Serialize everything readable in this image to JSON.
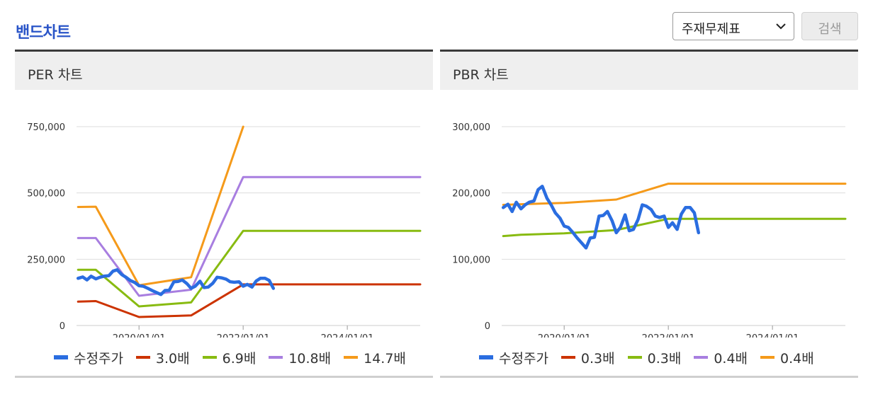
{
  "header": {
    "title": "밴드차트"
  },
  "toolbar": {
    "select_value": "주재무제표",
    "search_label": "검색"
  },
  "chart_data": [
    {
      "type": "line",
      "panel_title": "PER 차트",
      "x_ticks": [
        "2020/01/01",
        "2022/01/01",
        "2024/01/01"
      ],
      "y_ticks": [
        "0",
        "250,000",
        "500,000",
        "750,000"
      ],
      "ylim": [
        0,
        750000
      ],
      "xlim": [
        2018.8,
        2025.4
      ],
      "grid": true,
      "legend_position": "bottom",
      "series": [
        {
          "name": "수정주가",
          "color": "#2a6de0",
          "bold": true,
          "x": [
            2018.83,
            2018.92,
            2019.0,
            2019.08,
            2019.17,
            2019.25,
            2019.33,
            2019.42,
            2019.5,
            2019.58,
            2019.67,
            2019.75,
            2019.83,
            2019.92,
            2020.0,
            2020.08,
            2020.17,
            2020.25,
            2020.33,
            2020.42,
            2020.5,
            2020.58,
            2020.67,
            2020.75,
            2020.83,
            2020.92,
            2021.0,
            2021.08,
            2021.17,
            2021.25,
            2021.33,
            2021.42,
            2021.5,
            2021.58,
            2021.67,
            2021.75,
            2021.83,
            2021.92,
            2022.0,
            2022.08,
            2022.17,
            2022.25,
            2022.33,
            2022.42,
            2022.5,
            2022.58
          ],
          "y": [
            178000,
            183000,
            172000,
            186000,
            176000,
            182000,
            186000,
            188000,
            205000,
            210000,
            192000,
            182000,
            170000,
            162000,
            150000,
            148000,
            140000,
            132000,
            125000,
            117000,
            132000,
            133000,
            165000,
            166000,
            172000,
            158000,
            140000,
            148000,
            167000,
            143000,
            145000,
            160000,
            182000,
            180000,
            175000,
            165000,
            163000,
            165000,
            148000,
            155000,
            145000,
            168000,
            178000,
            178000,
            170000,
            140000
          ]
        },
        {
          "name": "3.0배",
          "color": "#cc3300",
          "x": [
            2018.83,
            2019.17,
            2020.0,
            2021.0,
            2022.0,
            2025.4
          ],
          "y": [
            90000,
            92000,
            32000,
            38000,
            155000,
            155000
          ]
        },
        {
          "name": "6.9배",
          "color": "#88bb11",
          "x": [
            2018.83,
            2019.17,
            2020.0,
            2021.0,
            2022.0,
            2025.4
          ],
          "y": [
            210000,
            210000,
            72000,
            87000,
            357000,
            357000
          ]
        },
        {
          "name": "10.8배",
          "color": "#a87ee0",
          "x": [
            2018.83,
            2019.17,
            2020.0,
            2021.0,
            2022.0,
            2025.4
          ],
          "y": [
            330000,
            330000,
            112000,
            135000,
            560000,
            560000
          ]
        },
        {
          "name": "14.7배",
          "color": "#f59a1a",
          "x": [
            2018.83,
            2019.17,
            2020.0,
            2021.0,
            2022.0
          ],
          "y": [
            447000,
            448000,
            152000,
            182000,
            750000
          ]
        }
      ]
    },
    {
      "type": "line",
      "panel_title": "PBR 차트",
      "x_ticks": [
        "2020/01/01",
        "2022/01/01",
        "2024/01/01"
      ],
      "y_ticks": [
        "0",
        "100,000",
        "200,000",
        "300,000"
      ],
      "ylim": [
        0,
        300000
      ],
      "xlim": [
        2018.8,
        2025.4
      ],
      "grid": true,
      "legend_position": "bottom",
      "series": [
        {
          "name": "수정주가",
          "color": "#2a6de0",
          "bold": true,
          "x": [
            2018.83,
            2018.92,
            2019.0,
            2019.08,
            2019.17,
            2019.25,
            2019.33,
            2019.42,
            2019.5,
            2019.58,
            2019.67,
            2019.75,
            2019.83,
            2019.92,
            2020.0,
            2020.08,
            2020.17,
            2020.25,
            2020.33,
            2020.42,
            2020.5,
            2020.58,
            2020.67,
            2020.75,
            2020.83,
            2020.92,
            2021.0,
            2021.08,
            2021.17,
            2021.25,
            2021.33,
            2021.42,
            2021.5,
            2021.58,
            2021.67,
            2021.75,
            2021.83,
            2021.92,
            2022.0,
            2022.08,
            2022.17,
            2022.25,
            2022.33,
            2022.42,
            2022.5,
            2022.58
          ],
          "y": [
            178000,
            183000,
            172000,
            186000,
            176000,
            182000,
            186000,
            188000,
            205000,
            210000,
            192000,
            182000,
            170000,
            162000,
            150000,
            148000,
            140000,
            132000,
            125000,
            117000,
            132000,
            133000,
            165000,
            166000,
            172000,
            158000,
            140000,
            148000,
            167000,
            143000,
            145000,
            160000,
            182000,
            180000,
            175000,
            165000,
            163000,
            165000,
            148000,
            155000,
            145000,
            168000,
            178000,
            178000,
            170000,
            140000
          ]
        },
        {
          "name": "0.3배",
          "color": "#cc3300",
          "x": [],
          "y": []
        },
        {
          "name": "0.3배",
          "color": "#88bb11",
          "x": [
            2018.83,
            2019.17,
            2020.0,
            2021.0,
            2022.0,
            2025.4
          ],
          "y": [
            135000,
            137000,
            139000,
            144000,
            161000,
            161000
          ]
        },
        {
          "name": "0.4배",
          "color": "#a87ee0",
          "x": [],
          "y": []
        },
        {
          "name": "0.4배",
          "color": "#f59a1a",
          "x": [
            2018.83,
            2019.17,
            2020.0,
            2021.0,
            2022.0,
            2025.4
          ],
          "y": [
            182000,
            183000,
            185000,
            190000,
            214000,
            214000
          ]
        }
      ]
    }
  ]
}
